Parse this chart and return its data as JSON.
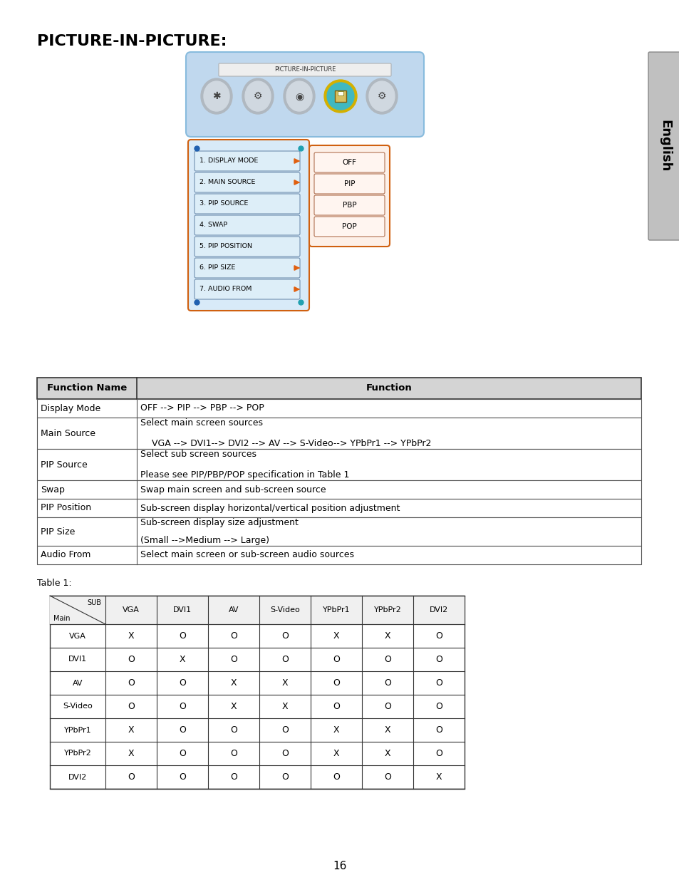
{
  "title": "PICTURE-IN-PICTURE:",
  "page_number": "16",
  "background_color": "#ffffff",
  "sidebar_text": "English",
  "menu_image_label": "PICTURE-IN-PICTURE",
  "menu_items": [
    "1. DISPLAY MODE",
    "2. MAIN SOURCE",
    "3. PIP SOURCE",
    "4. SWAP",
    "5. PIP POSITION",
    "6. PIP SIZE",
    "7. AUDIO FROM"
  ],
  "menu_items_arrow": [
    true,
    true,
    false,
    false,
    false,
    true,
    true
  ],
  "submenu_items": [
    "OFF",
    "PIP",
    "PBP",
    "POP"
  ],
  "function_table_headers": [
    "Function Name",
    "Function"
  ],
  "function_table_rows": [
    [
      "Display Mode",
      "OFF --> PIP --> PBP --> POP"
    ],
    [
      "Main Source",
      "Select main screen sources\n    VGA --> DVI1--> DVI2 --> AV --> S-Video--> YPbPr1 --> YPbPr2"
    ],
    [
      "PIP Source",
      "Select sub screen sources\nPlease see PIP/PBP/POP specification in Table 1"
    ],
    [
      "Swap",
      "Swap main screen and sub-screen source"
    ],
    [
      "PIP Position",
      "Sub-screen display horizontal/vertical position adjustment"
    ],
    [
      "PIP Size",
      "Sub-screen display size adjustment\n(Small -->Medium --> Large)"
    ],
    [
      "Audio From",
      "Select main screen or sub-screen audio sources"
    ]
  ],
  "table1_label": "Table 1:",
  "table1_col_headers": [
    "VGA",
    "DVI1",
    "AV",
    "S-Video",
    "YPbPr1",
    "YPbPr2",
    "DVI2"
  ],
  "table1_row_headers": [
    "VGA",
    "DVI1",
    "AV",
    "S-Video",
    "YPbPr1",
    "YPbPr2",
    "DVI2"
  ],
  "table1_data": [
    [
      "X",
      "O",
      "O",
      "O",
      "X",
      "X",
      "O"
    ],
    [
      "O",
      "X",
      "O",
      "O",
      "O",
      "O",
      "O"
    ],
    [
      "O",
      "O",
      "X",
      "X",
      "O",
      "O",
      "O"
    ],
    [
      "O",
      "O",
      "X",
      "X",
      "O",
      "O",
      "O"
    ],
    [
      "X",
      "O",
      "O",
      "O",
      "X",
      "X",
      "O"
    ],
    [
      "X",
      "O",
      "O",
      "O",
      "X",
      "X",
      "O"
    ],
    [
      "O",
      "O",
      "O",
      "O",
      "O",
      "O",
      "X"
    ]
  ]
}
